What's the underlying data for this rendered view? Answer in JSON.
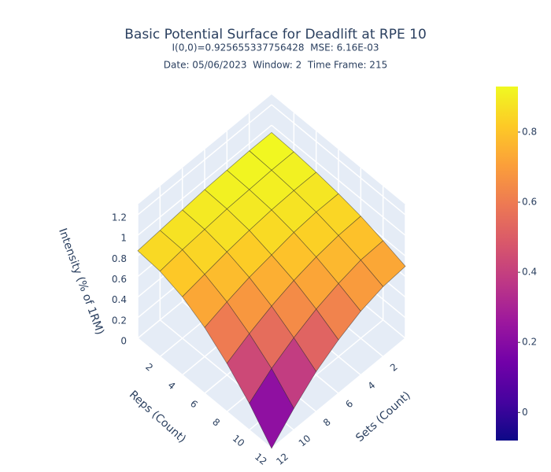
{
  "chart_data": {
    "type": "surface",
    "title": "Basic Potential Surface for Deadlift at RPE 10",
    "subtitle": "I(0,0)=0.925655337756428  MSE: 6.16E-03",
    "subtitle2": "Date: 05/06/2023  Window: 2  Time Frame: 215",
    "x_title": "Reps (Count)",
    "y_title": "Sets (Count)",
    "z_title": "Intensity (% of 1RM)",
    "x": [
      0,
      2,
      4,
      6,
      8,
      10,
      12
    ],
    "y": [
      0,
      2,
      4,
      6,
      8,
      10,
      12
    ],
    "z": [
      [
        0.93,
        0.93,
        0.92,
        0.91,
        0.89,
        0.87,
        0.85
      ],
      [
        0.92,
        0.92,
        0.91,
        0.9,
        0.88,
        0.86,
        0.83
      ],
      [
        0.9,
        0.9,
        0.89,
        0.87,
        0.84,
        0.8,
        0.76
      ],
      [
        0.87,
        0.87,
        0.85,
        0.81,
        0.77,
        0.71,
        0.64
      ],
      [
        0.83,
        0.82,
        0.79,
        0.74,
        0.67,
        0.58,
        0.47
      ],
      [
        0.77,
        0.76,
        0.71,
        0.64,
        0.54,
        0.42,
        0.26
      ],
      [
        0.7,
        0.68,
        0.62,
        0.52,
        0.39,
        0.21,
        0.0
      ]
    ],
    "xlim": [
      0,
      12
    ],
    "ylim": [
      0,
      12
    ],
    "zlim": [
      0,
      1.3
    ],
    "xticks": [
      2,
      4,
      6,
      8,
      10,
      12
    ],
    "yticks": [
      2,
      4,
      6,
      8,
      10,
      12
    ],
    "zticks": [
      0,
      0.2,
      0.4,
      0.6,
      0.8,
      1,
      1.2
    ],
    "colorscale": [
      "#0d0887",
      "#46039f",
      "#7201a8",
      "#9c179e",
      "#bd3786",
      "#d8576b",
      "#ed7953",
      "#fb9f3a",
      "#fdca26",
      "#f0f921"
    ],
    "colorbar_lim": [
      -0.08,
      0.93
    ],
    "colorbar_ticks": [
      0,
      0.2,
      0.4,
      0.6,
      0.8
    ],
    "grid": true
  }
}
